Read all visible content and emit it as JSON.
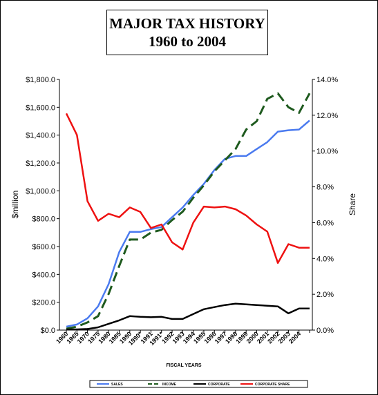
{
  "title_line1": "MAJOR TAX HISTORY",
  "title_line2": "1960 to  2004",
  "chart_data": {
    "type": "line",
    "xlabel": "FISCAL YEARS",
    "ylabel_left": "$million",
    "ylabel_right": "Share",
    "ylim_left": [
      0,
      1800
    ],
    "ylim_right": [
      0,
      14
    ],
    "yticks_left": [
      "$0.0",
      "$200.0",
      "$400.0",
      "$600.0",
      "$800.0",
      "$1,000.0",
      "$1,200.0",
      "$1,400.0",
      "$1,600.0",
      "$1,800.0"
    ],
    "yticks_right": [
      "0.0%",
      "2.0%",
      "4.0%",
      "6.0%",
      "8.0%",
      "10.0%",
      "12.0%",
      "14.0%"
    ],
    "categories": [
      "1960",
      "1965",
      "1970",
      "1975",
      "1980",
      "1985",
      "1990",
      "1990*",
      "1991",
      "1991*",
      "1992",
      "1993",
      "1994",
      "1995",
      "1996",
      "1997",
      "1998",
      "1999",
      "2000",
      "2001",
      "2002",
      "2003",
      "2004",
      ""
    ],
    "legend_position": "bottom",
    "grid": false,
    "series": [
      {
        "name": "SALES",
        "axis": "left",
        "color": "#4a7aef",
        "style": "solid",
        "values": [
          25,
          40,
          85,
          170,
          330,
          560,
          705,
          705,
          725,
          740,
          810,
          880,
          970,
          1050,
          1150,
          1230,
          1250,
          1250,
          1300,
          1350,
          1425,
          1435,
          1440,
          1505
        ]
      },
      {
        "name": "INCOME",
        "axis": "left",
        "color": "#1e5a1e",
        "style": "dashed",
        "values": [
          10,
          25,
          55,
          100,
          260,
          460,
          650,
          650,
          700,
          720,
          790,
          850,
          950,
          1040,
          1140,
          1220,
          1300,
          1440,
          1500,
          1660,
          1700,
          1600,
          1560,
          1700
        ]
      },
      {
        "name": "CORPORATE",
        "axis": "left",
        "color": "#000000",
        "style": "solid",
        "values": [
          5,
          5,
          8,
          20,
          45,
          70,
          100,
          95,
          92,
          95,
          80,
          80,
          115,
          150,
          165,
          180,
          190,
          185,
          180,
          175,
          170,
          120,
          155,
          155
        ]
      },
      {
        "name": "CORPORATE SHARE",
        "axis": "right",
        "color": "#ee1111",
        "style": "solid",
        "values": [
          12.1,
          10.9,
          7.2,
          6.1,
          6.5,
          6.3,
          6.85,
          6.6,
          5.7,
          5.9,
          4.9,
          4.5,
          6.0,
          6.9,
          6.85,
          6.9,
          6.75,
          6.4,
          5.9,
          5.5,
          3.75,
          4.8,
          4.6,
          4.6
        ]
      }
    ]
  }
}
